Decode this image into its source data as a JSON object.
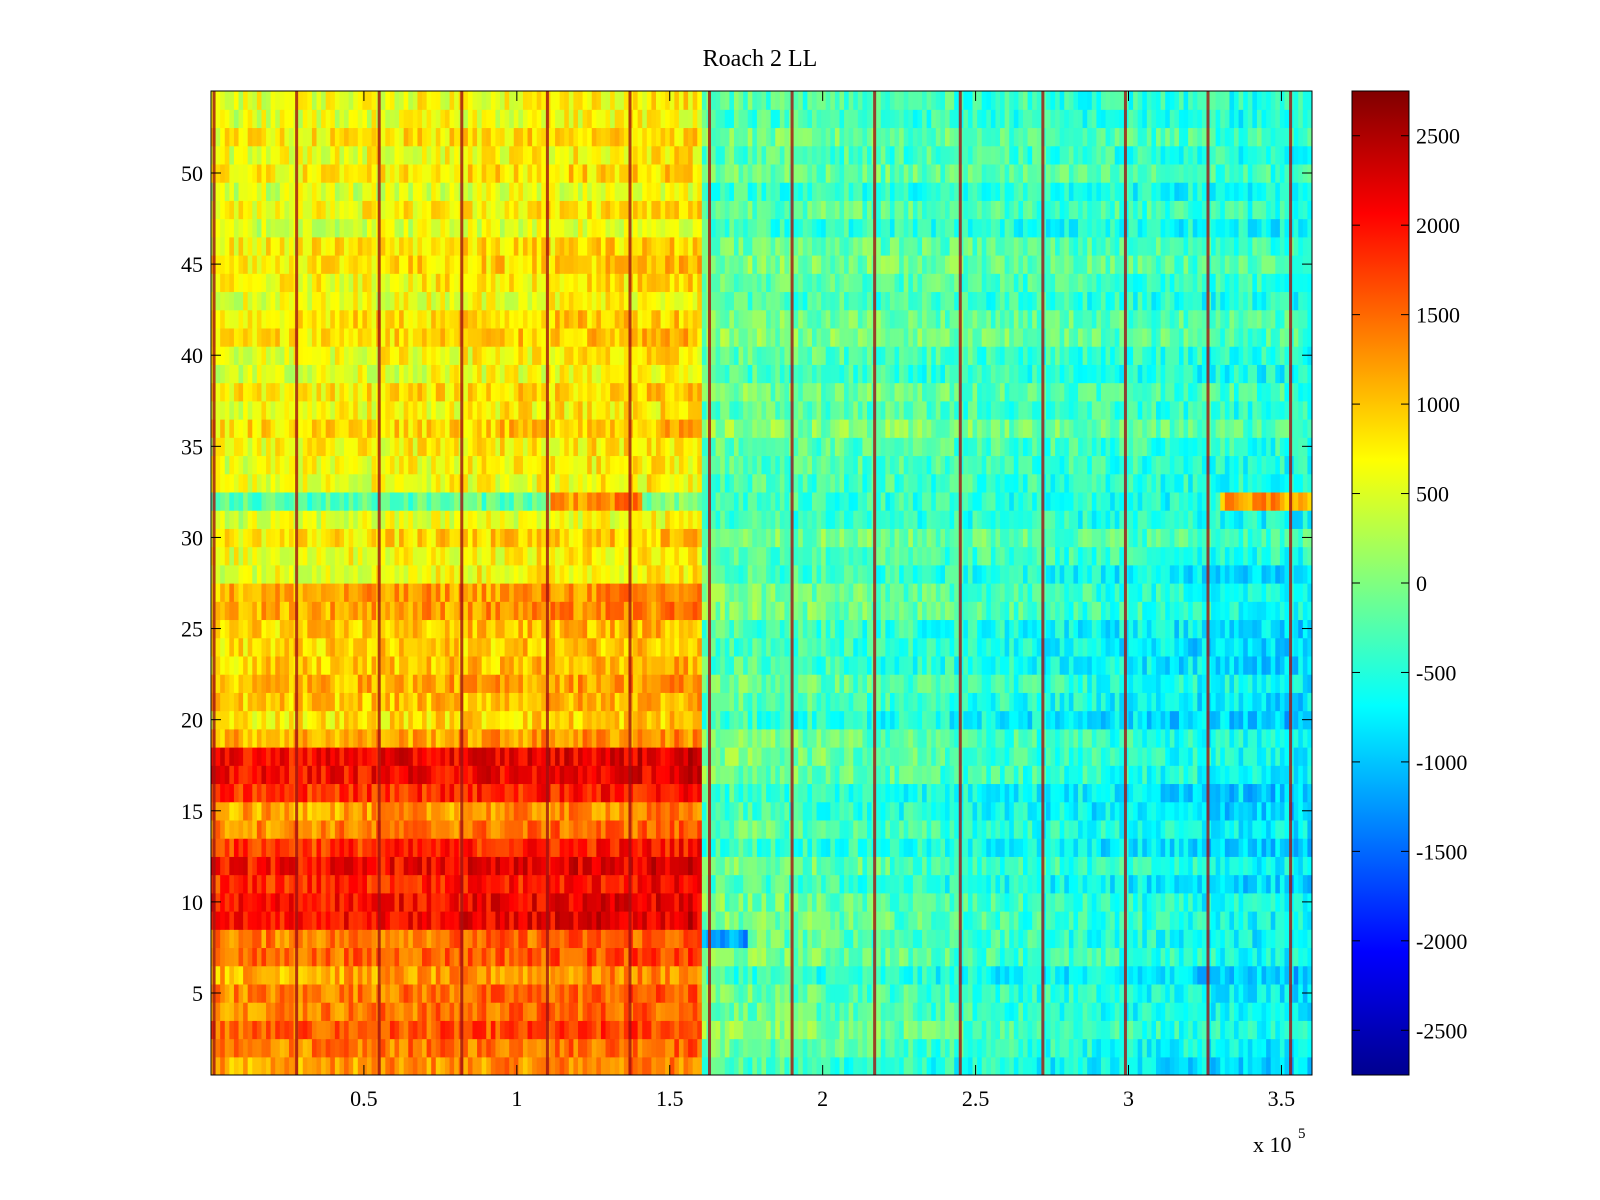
{
  "chart_data": {
    "type": "heatmap",
    "title": "Roach 2 LL",
    "xlabel": "",
    "ylabel": "",
    "x_multiplier_label": "x 10",
    "x_multiplier_exponent": "5",
    "xlim": [
      0,
      3.6
    ],
    "ylim": [
      0.5,
      54.5
    ],
    "x_ticks": [
      0.5,
      1,
      1.5,
      2,
      2.5,
      3,
      3.5
    ],
    "x_tick_labels": [
      "0.5",
      "1",
      "1.5",
      "2",
      "2.5",
      "3",
      "3.5"
    ],
    "y_ticks": [
      5,
      10,
      15,
      20,
      25,
      30,
      35,
      40,
      45,
      50
    ],
    "y_tick_labels": [
      "5",
      "10",
      "15",
      "20",
      "25",
      "30",
      "35",
      "40",
      "45",
      "50"
    ],
    "rows": 54,
    "colorbar": {
      "colormap": "jet",
      "limits": [
        -2750,
        2750
      ],
      "ticks": [
        2500,
        2000,
        1500,
        1000,
        500,
        0,
        -500,
        -1000,
        -1500,
        -2000,
        -2500
      ],
      "tick_labels": [
        "2500",
        "2000",
        "1500",
        "1000",
        "500",
        "0",
        "-500",
        "-1000",
        "-1500",
        "-2000",
        "-2500"
      ]
    },
    "boundary_x": 1.6,
    "vertical_stripes_x": [
      0.01,
      0.28,
      0.55,
      0.82,
      1.1,
      1.37,
      1.63,
      1.9,
      2.17,
      2.45,
      2.72,
      2.99,
      3.26,
      3.53
    ],
    "grid": false
  },
  "colors": {
    "background": "#ffffff",
    "axis": "#000000"
  }
}
